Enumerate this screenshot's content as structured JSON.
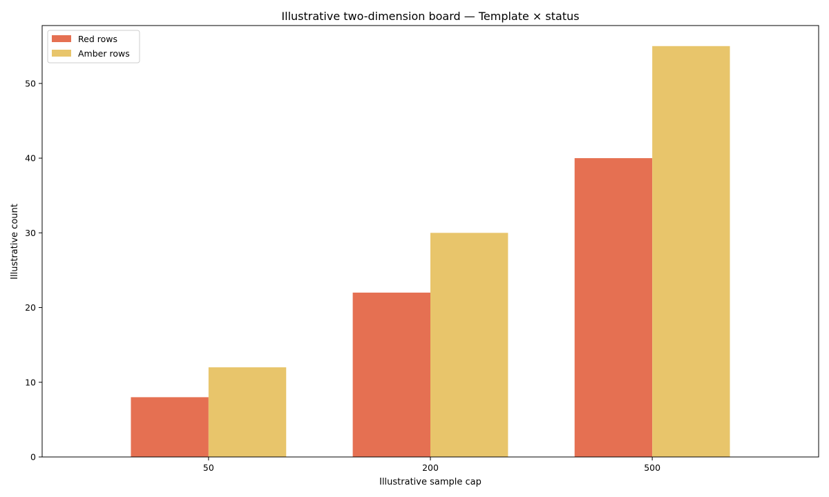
{
  "chart_data": {
    "type": "bar",
    "title": "Illustrative two-dimension board — Template × status",
    "xlabel": "Illustrative sample cap",
    "ylabel": "Illustrative count",
    "categories": [
      "50",
      "200",
      "500"
    ],
    "series": [
      {
        "name": "Red rows",
        "values": [
          8,
          22,
          40
        ],
        "color": "#e57052"
      },
      {
        "name": "Amber rows",
        "values": [
          12,
          30,
          55
        ],
        "color": "#e8c56b"
      }
    ],
    "ylim": [
      0,
      57.75
    ],
    "yticks": [
      0,
      10,
      20,
      30,
      40,
      50
    ],
    "grid": false,
    "legend_position": "top-left"
  }
}
